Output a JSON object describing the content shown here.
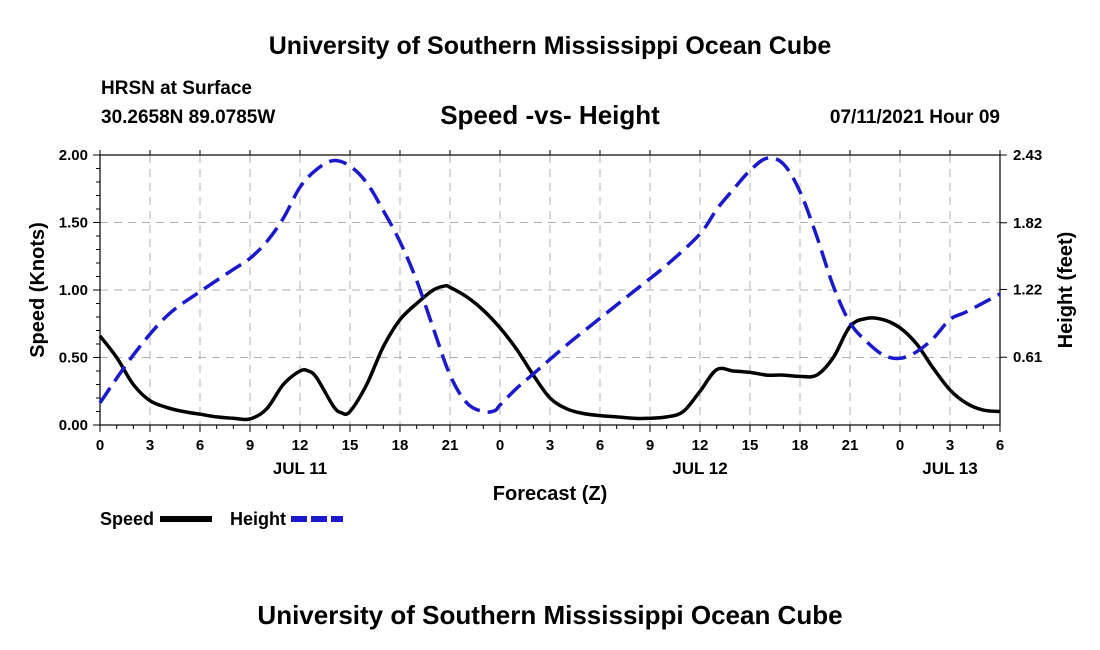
{
  "header": {
    "title": "University of Southern Mississippi Ocean Cube",
    "station": "HRSN at Surface",
    "coords": "30.2658N  89.0785W",
    "chart_title": "Speed -vs- Height",
    "datetime": "07/11/2021 Hour 09"
  },
  "footer": {
    "title": "University of Southern Mississippi Ocean Cube"
  },
  "legend": {
    "speed_label": "Speed",
    "height_label": "Height"
  },
  "colors": {
    "speed": "#000000",
    "height": "#1a1acc",
    "grid": "#b0b0b0"
  },
  "chart_data": {
    "type": "line",
    "title": "Speed -vs- Height",
    "xlabel": "Forecast (Z)",
    "ylabel": "Speed (Knots)",
    "y2label": "Height (feet)",
    "xlim": [
      0,
      54
    ],
    "ylim": [
      0,
      2.0
    ],
    "y2lim": [
      0,
      2.43
    ],
    "xticks": [
      0,
      3,
      6,
      9,
      12,
      15,
      18,
      21,
      24,
      27,
      30,
      33,
      36,
      39,
      42,
      45,
      48,
      51,
      54
    ],
    "xtick_labels": [
      "0",
      "3",
      "6",
      "9",
      "12",
      "15",
      "18",
      "21",
      "0",
      "3",
      "6",
      "9",
      "12",
      "15",
      "18",
      "21",
      "0",
      "3",
      "6"
    ],
    "yticks": [
      0,
      0.5,
      1.0,
      1.5,
      2.0
    ],
    "ytick_labels": [
      "0.00",
      "0.50",
      "1.00",
      "1.50",
      "2.00"
    ],
    "y2ticks": [
      0.61,
      1.22,
      1.82,
      2.43
    ],
    "y2tick_labels": [
      "0.61",
      "1.22",
      "1.82",
      "2.43"
    ],
    "date_labels": [
      {
        "x": 12,
        "label": "JUL 11"
      },
      {
        "x": 36,
        "label": "JUL 12"
      },
      {
        "x": 51,
        "label": "JUL 13"
      }
    ],
    "series": [
      {
        "name": "Speed",
        "axis": "left",
        "style": "solid",
        "x": [
          0,
          1,
          2,
          3,
          4,
          5,
          6,
          7,
          8,
          9,
          10,
          11,
          12,
          12.5,
          13,
          14,
          14.5,
          15,
          16,
          17,
          18,
          19,
          20,
          20.7,
          21,
          22,
          23,
          24,
          25,
          26,
          27,
          28,
          29,
          30,
          31,
          32,
          33,
          34,
          35,
          36,
          37,
          38,
          39,
          40,
          41,
          42,
          43,
          44,
          45,
          46,
          47,
          48,
          49,
          50,
          51,
          52,
          53,
          54
        ],
        "values": [
          0.66,
          0.5,
          0.3,
          0.18,
          0.13,
          0.1,
          0.08,
          0.06,
          0.05,
          0.045,
          0.12,
          0.3,
          0.4,
          0.4,
          0.35,
          0.14,
          0.09,
          0.1,
          0.3,
          0.58,
          0.78,
          0.9,
          1.0,
          1.03,
          1.02,
          0.95,
          0.85,
          0.72,
          0.56,
          0.37,
          0.2,
          0.12,
          0.085,
          0.07,
          0.06,
          0.05,
          0.05,
          0.06,
          0.1,
          0.25,
          0.41,
          0.4,
          0.39,
          0.37,
          0.37,
          0.36,
          0.37,
          0.5,
          0.73,
          0.79,
          0.78,
          0.72,
          0.6,
          0.42,
          0.26,
          0.16,
          0.11,
          0.1
        ]
      },
      {
        "name": "Height",
        "axis": "right",
        "style": "dashed",
        "x": [
          0,
          2,
          4,
          6,
          8,
          9,
          10,
          11,
          12,
          13,
          14,
          15,
          16,
          17,
          18,
          19,
          20,
          21,
          22,
          23,
          23.7,
          24,
          25,
          26,
          28,
          30,
          32,
          34,
          36,
          37,
          38,
          39,
          40,
          41,
          42,
          43,
          44,
          45,
          46,
          47,
          48,
          49,
          50,
          51,
          52,
          54
        ],
        "values": [
          0.2,
          0.63,
          0.98,
          1.2,
          1.4,
          1.5,
          1.65,
          1.86,
          2.14,
          2.3,
          2.38,
          2.33,
          2.18,
          1.93,
          1.65,
          1.3,
          0.87,
          0.45,
          0.2,
          0.12,
          0.13,
          0.18,
          0.33,
          0.46,
          0.72,
          0.96,
          1.2,
          1.44,
          1.72,
          1.94,
          2.12,
          2.29,
          2.4,
          2.35,
          2.1,
          1.7,
          1.25,
          0.92,
          0.75,
          0.63,
          0.6,
          0.66,
          0.78,
          0.95,
          1.02,
          1.18
        ]
      }
    ]
  }
}
